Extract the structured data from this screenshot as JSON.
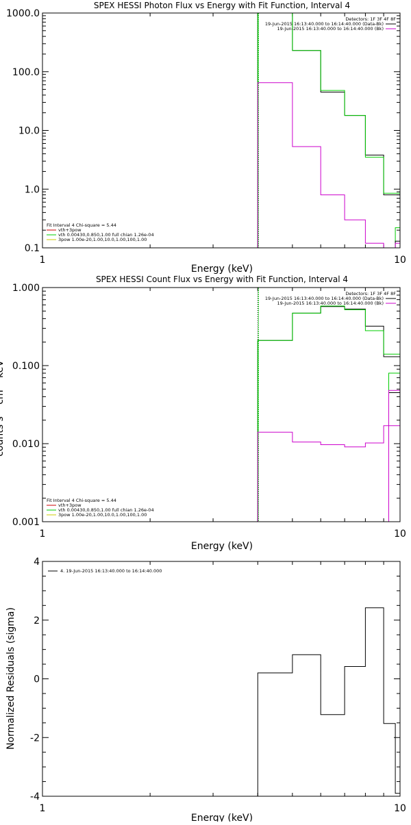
{
  "chart_data": [
    {
      "id": "photon",
      "type": "line",
      "title": "SPEX HESSI Photon Flux vs Energy with Fit Function, Interval 4",
      "xlabel": "Energy (keV)",
      "ylabel": "",
      "xscale": "log",
      "yscale": "log",
      "xlim": [
        1,
        10
      ],
      "ylim": [
        0.1,
        1000
      ],
      "x_ticks": [
        {
          "v": 1,
          "label": "1"
        },
        {
          "v": 10,
          "label": "10"
        }
      ],
      "y_ticks": [
        {
          "v": 0.1,
          "label": "0.1"
        },
        {
          "v": 1,
          "label": "1.0"
        },
        {
          "v": 10,
          "label": "10.0"
        },
        {
          "v": 100,
          "label": "100.0"
        },
        {
          "v": 1000,
          "label": "1000.0"
        }
      ],
      "fit_start": 4,
      "legend_top": {
        "detectors": "Detectors: 1F 3F 4F 8F",
        "rows": [
          {
            "text": "19-Jun-2015 16:13:40.000 to 16:14:40.000 (Data-Bk)",
            "color": "#000000"
          },
          {
            "text": "19-Jun-2015 16:13:40.000 to 16:14:40.000 (Bk)",
            "color": "#cc00cc"
          }
        ]
      },
      "legend_bottom": {
        "header": "Fit Interval  4    Chi-square = 5.44",
        "rows": [
          {
            "text": "vth+3pow",
            "color": "#cc0000"
          },
          {
            "text": "vth 0.00430,0.850,1.00  full chian 1.26e-04",
            "color": "#00cc00"
          },
          {
            "text": "3pow 1.00e-20,1.00,10.0,1.00,100,1.00",
            "color": "#cccc00"
          }
        ]
      },
      "edges": [
        4,
        5,
        6,
        7,
        8,
        9,
        10
      ],
      "series": [
        {
          "name": "Data-Bk",
          "color": "#000000",
          "values": [
            1000,
            230,
            45,
            18,
            3.8,
            0.8
          ]
        },
        {
          "name": "vth+3pow",
          "color": "#00cc00",
          "values": [
            1000,
            230,
            48,
            18,
            3.5,
            0.85
          ]
        },
        {
          "name": "Bk",
          "color": "#cc00cc",
          "values": [
            65,
            5.3,
            0.8,
            0.3,
            0.12,
            0.1
          ]
        }
      ],
      "tail": [
        {
          "color": "#00cc00",
          "from": 9.7,
          "to": 10,
          "value": 0.22
        },
        {
          "color": "#000000",
          "from": 9.7,
          "to": 10,
          "value": 0.13
        },
        {
          "color": "#cc00cc",
          "from": 9.7,
          "to": 10,
          "value": 0.12
        }
      ]
    },
    {
      "id": "count",
      "type": "line",
      "title": "SPEX HESSI Count Flux vs Energy with Fit Function, Interval 4",
      "xlabel": "Energy (keV)",
      "ylabel": "counts s⁻¹ cm⁻² keV⁻¹",
      "xscale": "log",
      "yscale": "log",
      "xlim": [
        1,
        10
      ],
      "ylim": [
        0.001,
        1
      ],
      "x_ticks": [
        {
          "v": 1,
          "label": "1"
        },
        {
          "v": 10,
          "label": "10"
        }
      ],
      "y_ticks": [
        {
          "v": 0.001,
          "label": "0.001"
        },
        {
          "v": 0.01,
          "label": "0.010"
        },
        {
          "v": 0.1,
          "label": "0.100"
        },
        {
          "v": 1,
          "label": "1.000"
        }
      ],
      "fit_start": 4,
      "legend_top": {
        "detectors": "Detectors: 1F 3F 4F 8F",
        "rows": [
          {
            "text": "19-Jun-2015 16:13:40.000 to 16:14:40.000 (Data-Bk)",
            "color": "#000000"
          },
          {
            "text": "19-Jun-2015 16:13:40.000 to 16:14:40.000 (Bk)",
            "color": "#cc00cc"
          }
        ]
      },
      "legend_bottom": {
        "header": "Fit Interval  4    Chi-square = 5.44",
        "rows": [
          {
            "text": "vth+3pow",
            "color": "#cc0000"
          },
          {
            "text": "vth 0.00430,0.850,1.00  full chian 1.26e-04",
            "color": "#00cc00"
          },
          {
            "text": "3pow 1.00e-20,1.00,10.0,1.00,100,1.00",
            "color": "#cccc00"
          }
        ]
      },
      "edges": [
        4,
        5,
        6,
        7,
        8,
        9,
        10
      ],
      "series": [
        {
          "name": "Data-Bk",
          "color": "#000000",
          "values": [
            0.21,
            0.47,
            0.57,
            0.53,
            0.32,
            0.13
          ]
        },
        {
          "name": "vth+3pow",
          "color": "#00cc00",
          "values": [
            0.21,
            0.47,
            0.58,
            0.52,
            0.28,
            0.14
          ]
        },
        {
          "name": "Bk",
          "color": "#cc00cc",
          "values": [
            0.014,
            0.0105,
            0.0097,
            0.0091,
            0.0102,
            0.017
          ]
        }
      ],
      "tail": [
        {
          "color": "#00cc00",
          "from": 9.3,
          "to": 10,
          "value": 0.08
        },
        {
          "color": "#000000",
          "from": 9.3,
          "to": 10,
          "value": 0.045
        },
        {
          "color": "#cc00cc",
          "from": 9.3,
          "to": 10,
          "value": 0.048
        }
      ]
    },
    {
      "id": "residuals",
      "type": "line",
      "title": "",
      "xlabel": "Energy (keV)",
      "ylabel": "Normalized Residuals (sigma)",
      "xscale": "log",
      "yscale": "linear",
      "xlim": [
        1,
        10
      ],
      "ylim": [
        -4,
        4
      ],
      "x_ticks": [
        {
          "v": 1,
          "label": "1"
        },
        {
          "v": 10,
          "label": "10"
        }
      ],
      "y_ticks": [
        {
          "v": -4,
          "label": "-4"
        },
        {
          "v": -2,
          "label": "-2"
        },
        {
          "v": 0,
          "label": "0"
        },
        {
          "v": 2,
          "label": "2"
        },
        {
          "v": 4,
          "label": "4"
        }
      ],
      "legend": {
        "text": "4. 19-Jun-2015 16:13:40.000 to 16:14:40.000",
        "color": "#000000"
      },
      "edges": [
        4,
        5,
        6,
        7,
        8,
        9,
        9.7,
        10
      ],
      "series": [
        {
          "name": "",
          "color": "#000000",
          "values": [
            0.2,
            0.82,
            -1.22,
            0.42,
            2.42,
            -1.52,
            -3.9
          ]
        }
      ]
    }
  ]
}
